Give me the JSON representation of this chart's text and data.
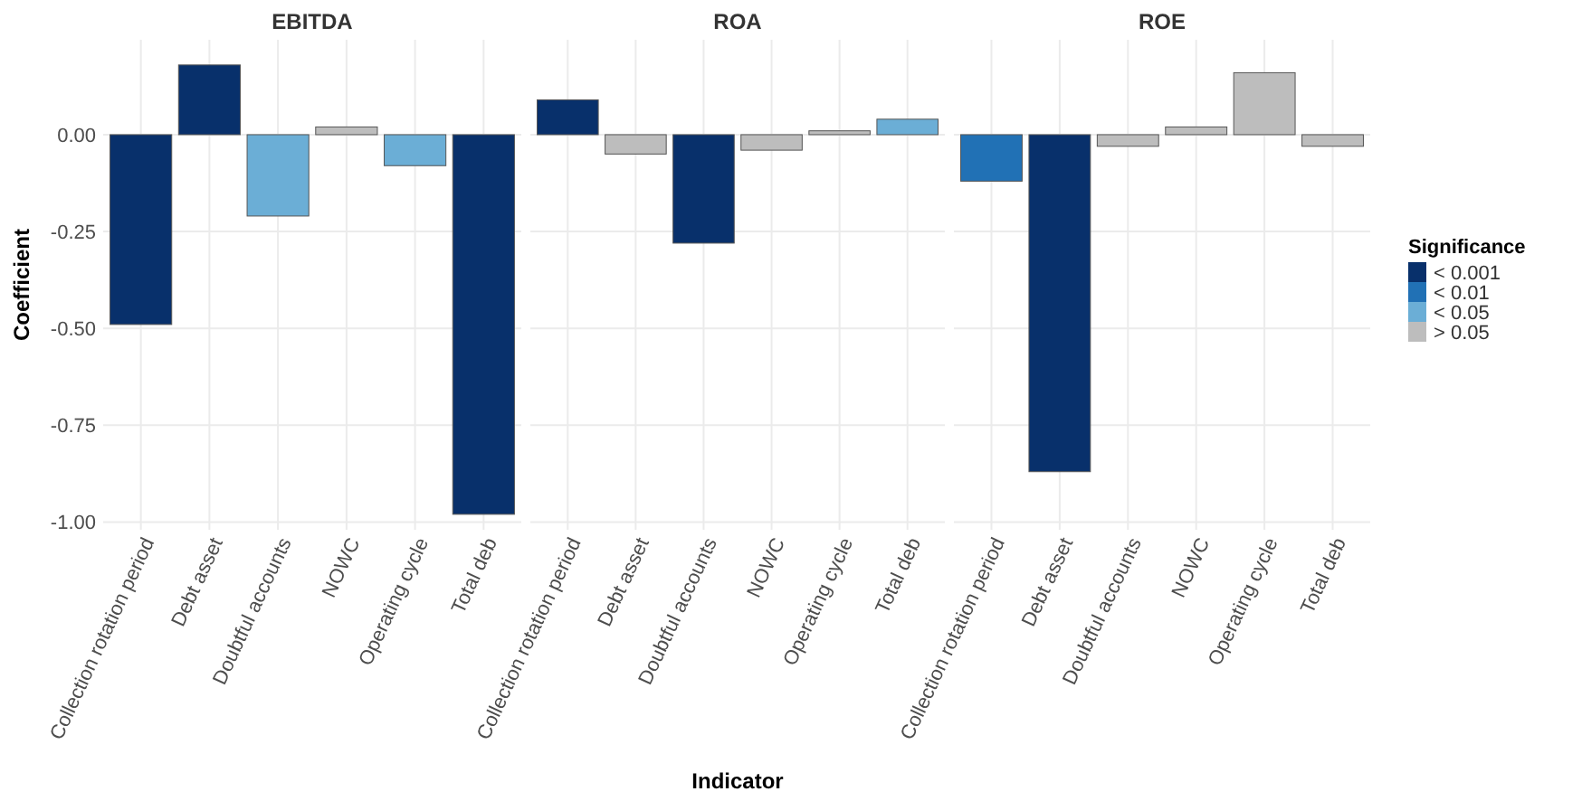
{
  "chart_data": [
    {
      "type": "bar",
      "title": "EBITDA",
      "ylabel": "Coefficient",
      "categories": [
        "Collection rotation period",
        "Debt asset",
        "Doubtful accounts",
        "NOWC",
        "Operating cycle",
        "Total deb"
      ],
      "ylim": [
        -1.02,
        0.245
      ],
      "yticks": [
        {
          "value": 0,
          "label": "0.00"
        },
        {
          "value": -0.25,
          "label": "-0.25"
        },
        {
          "value": -0.5,
          "label": "-0.50"
        },
        {
          "value": -0.75,
          "label": "-0.75"
        },
        {
          "value": -1,
          "label": "-1.00"
        }
      ],
      "grid": true,
      "values": [
        -0.49,
        0.18,
        -0.21,
        0.02,
        -0.08,
        -0.98
      ],
      "colors": [
        "#08306b",
        "#08306b",
        "#6baed6",
        "#bdbdbd",
        "#6baed6",
        "#08306b"
      ]
    },
    {
      "type": "bar",
      "title": "ROA",
      "xlabel": "Indicator",
      "categories": [
        "Collection rotation period",
        "Debt asset",
        "Doubtful accounts",
        "NOWC",
        "Operating cycle",
        "Total deb"
      ],
      "ylim": [
        -1.02,
        0.245
      ],
      "yticks": [
        {
          "value": 0,
          "label": null
        },
        {
          "value": -0.25,
          "label": null
        },
        {
          "value": -0.5,
          "label": null
        },
        {
          "value": -0.75,
          "label": null
        },
        {
          "value": -1,
          "label": null
        }
      ],
      "tick_labels": "x",
      "grid": true,
      "values": [
        0.09,
        -0.05,
        -0.28,
        -0.04,
        0.01,
        0.04
      ],
      "colors": [
        "#08306b",
        "#bdbdbd",
        "#08306b",
        "#bdbdbd",
        "#bdbdbd",
        "#6baed6"
      ]
    },
    {
      "type": "bar",
      "title": "ROE",
      "legend_title": "Significance",
      "categories": [
        "Collection rotation period",
        "Debt asset",
        "Doubtful accounts",
        "NOWC",
        "Operating cycle",
        "Total deb"
      ],
      "stacked": true,
      "ylim": [
        -1.02,
        0.245
      ],
      "yticks": [
        {
          "value": 0,
          "label": null
        },
        {
          "value": -0.25,
          "label": null
        },
        {
          "value": -0.5,
          "label": null
        },
        {
          "value": -0.75,
          "label": null
        },
        {
          "value": -1,
          "label": null
        }
      ],
      "tick_labels": "x",
      "grid": true,
      "legend": "right",
      "series": [
        {
          "name": "< 0.001",
          "color": "#08306b",
          "values": [
            null,
            -0.87,
            null,
            null,
            null,
            null
          ]
        },
        {
          "name": "< 0.01",
          "color": "#2171b5",
          "values": [
            -0.12,
            null,
            null,
            null,
            null,
            null
          ]
        },
        {
          "name": "< 0.05",
          "color": "#6baed6",
          "values": [
            null,
            null,
            null,
            null,
            null,
            null
          ]
        },
        {
          "name": "> 0.05",
          "color": "#bdbdbd",
          "values": [
            null,
            null,
            -0.03,
            0.02,
            0.16,
            -0.03
          ]
        }
      ]
    }
  ]
}
